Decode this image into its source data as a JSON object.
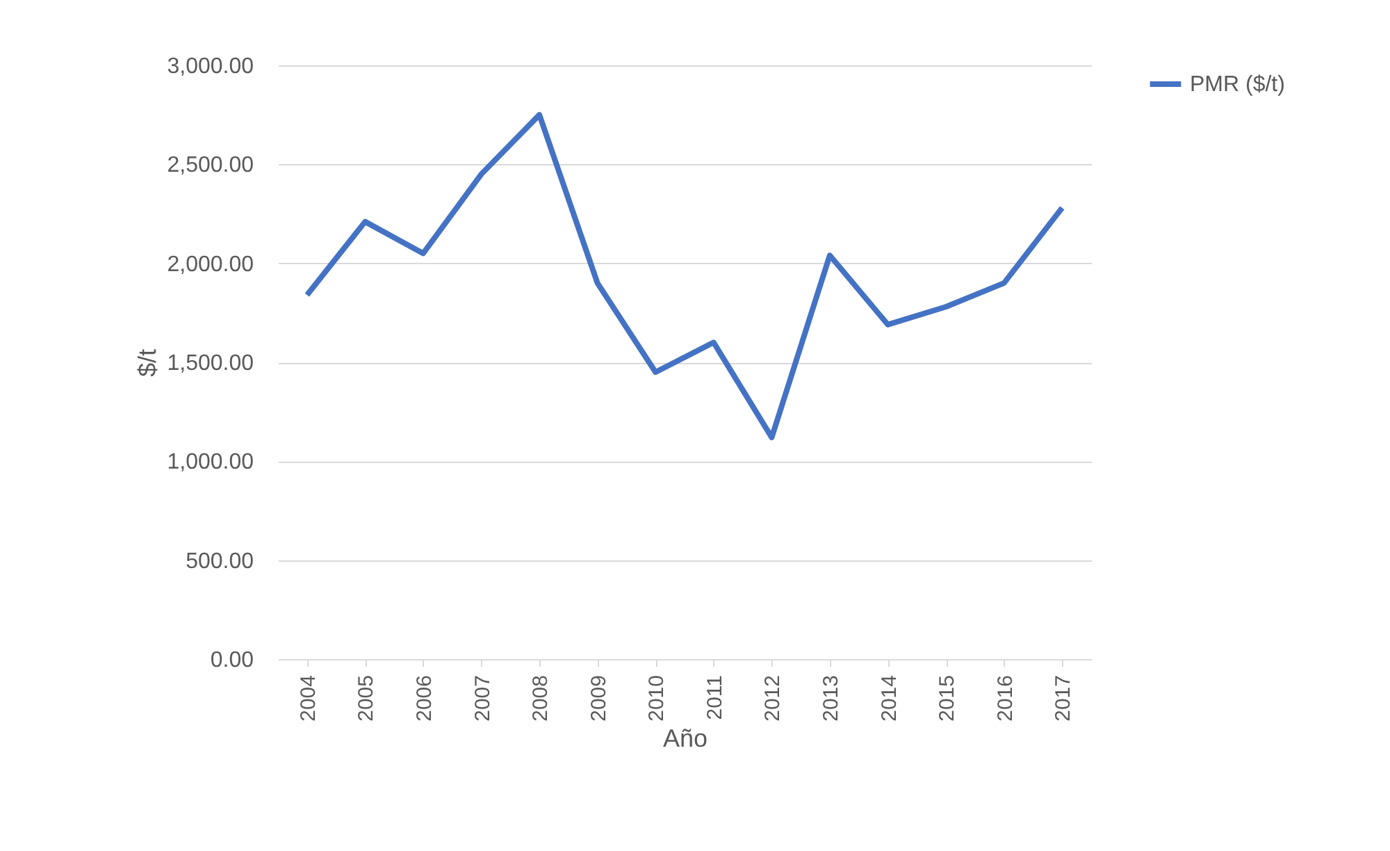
{
  "chart_data": {
    "type": "line",
    "xlabel": "Año",
    "ylabel": "$/t",
    "categories": [
      "2004",
      "2005",
      "2006",
      "2007",
      "2008",
      "2009",
      "2010",
      "2011",
      "2012",
      "2013",
      "2014",
      "2015",
      "2016",
      "2017"
    ],
    "series": [
      {
        "name": "PMR ($/t)",
        "color": "#4472c4",
        "values": [
          1840,
          2210,
          2050,
          2450,
          2750,
          1900,
          1450,
          1600,
          1120,
          2040,
          1690,
          1780,
          1900,
          2280
        ]
      }
    ],
    "ylim": [
      0,
      3000
    ],
    "yticks": [
      {
        "value": 0,
        "label": "0.00"
      },
      {
        "value": 500,
        "label": "500.00"
      },
      {
        "value": 1000,
        "label": "1,000.00"
      },
      {
        "value": 1500,
        "label": "1,500.00"
      },
      {
        "value": 2000,
        "label": "2,000.00"
      },
      {
        "value": 2500,
        "label": "2,500.00"
      },
      {
        "value": 3000,
        "label": "3,000.00"
      }
    ],
    "grid": "y",
    "legend": "right",
    "marker": "none",
    "line_style": "solid"
  }
}
